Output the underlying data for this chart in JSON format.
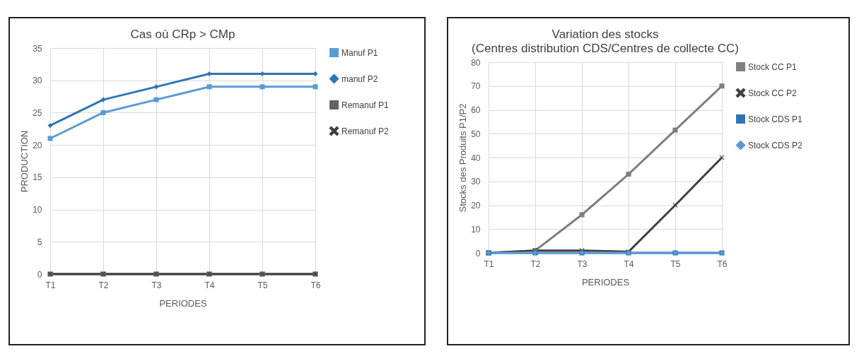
{
  "chart_data": [
    {
      "type": "line",
      "title": "Cas où CRp > CMp",
      "xlabel": "PERIODES",
      "ylabel": "PRODUCTION",
      "categories": [
        "T1",
        "T2",
        "T3",
        "T4",
        "T5",
        "T6"
      ],
      "ylim": [
        0,
        35
      ],
      "yticks": [
        0,
        5,
        10,
        15,
        20,
        25,
        30,
        35
      ],
      "grid": true,
      "legend": "right",
      "series": [
        {
          "name": "Manuf P1",
          "color": "#5b9bd5",
          "marker": "square",
          "values": [
            21,
            25,
            27,
            29,
            29,
            29
          ]
        },
        {
          "name": "manuf P2",
          "color": "#2e75b6",
          "marker": "diamond",
          "values": [
            23,
            27,
            29,
            31,
            31,
            31
          ]
        },
        {
          "name": "Remanuf P1",
          "color": "#636363",
          "marker": "square",
          "values": [
            0,
            0,
            0,
            0,
            0,
            0
          ]
        },
        {
          "name": "Remanuf P2",
          "color": "#404040",
          "marker": "cross",
          "values": [
            0,
            0,
            0,
            0,
            0,
            0
          ]
        }
      ]
    },
    {
      "type": "line",
      "title": "Variation des stocks",
      "subtitle": "(Centres distribution CDS/Centres de collecte CC)",
      "xlabel": "PERIODES",
      "ylabel": "Stocks des Produits P1/P2",
      "categories": [
        "T1",
        "T2",
        "T3",
        "T4",
        "T5",
        "T6"
      ],
      "ylim": [
        0,
        80
      ],
      "yticks": [
        0,
        10,
        20,
        30,
        40,
        50,
        60,
        70,
        80
      ],
      "grid": true,
      "legend": "right",
      "series": [
        {
          "name": "Stock CC P1",
          "color": "#7f7f7f",
          "marker": "square",
          "values": [
            0,
            1,
            16,
            33,
            51.5,
            70
          ]
        },
        {
          "name": "Stock CC P2",
          "color": "#404040",
          "marker": "cross",
          "values": [
            0,
            1,
            1,
            0.5,
            20,
            40
          ]
        },
        {
          "name": "Stock CDS P1",
          "color": "#2e75b6",
          "marker": "square",
          "values": [
            0,
            0,
            0,
            0,
            0,
            0
          ]
        },
        {
          "name": "Stock CDS P2",
          "color": "#5b9bd5",
          "marker": "diamond",
          "values": [
            0,
            0,
            0,
            0,
            0,
            0
          ]
        }
      ]
    }
  ]
}
